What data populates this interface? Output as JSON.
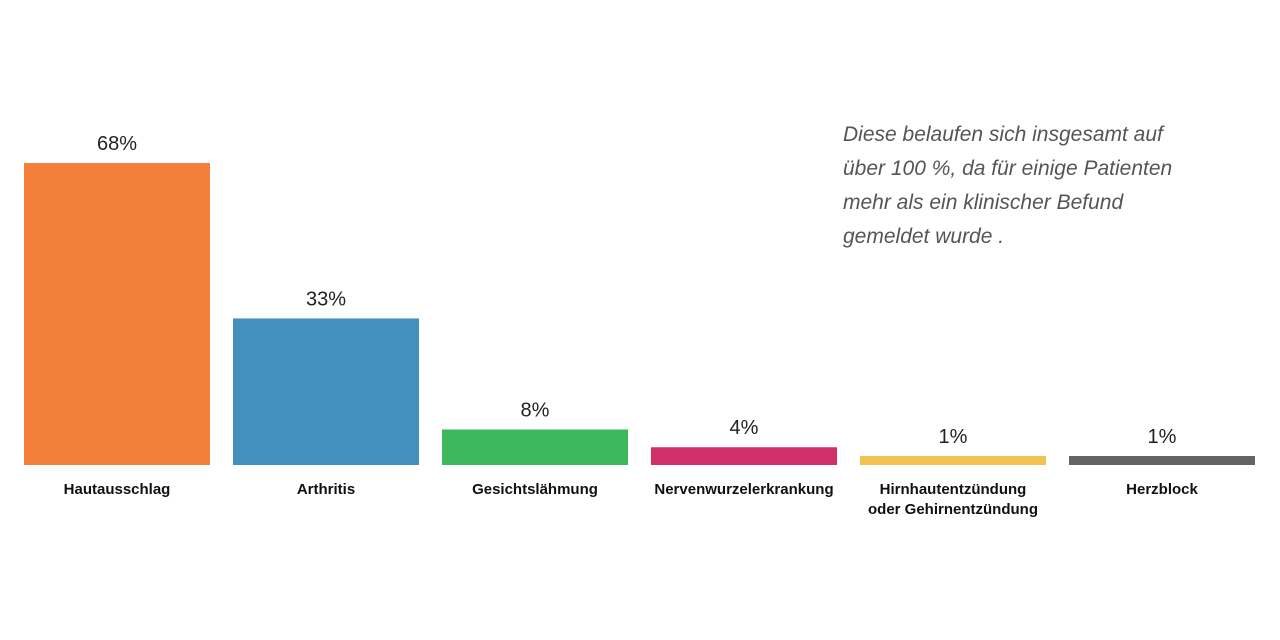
{
  "chart_data": {
    "type": "bar",
    "title": "",
    "xlabel": "",
    "ylabel": "",
    "ylim": [
      0,
      68
    ],
    "grid": false,
    "categories": [
      [
        "Hautausschlag"
      ],
      [
        "Arthritis"
      ],
      [
        "Gesichtslähmung"
      ],
      [
        "Nervenwurzelerkrankung"
      ],
      [
        "Hirnhautentzündung",
        "oder Gehirnentzündung"
      ],
      [
        "Herzblock"
      ]
    ],
    "values": [
      68,
      33,
      8,
      4,
      1,
      1
    ],
    "value_labels": [
      "68%",
      "33%",
      "8%",
      "4%",
      "1%",
      "1%"
    ],
    "colors": [
      "#F47F3B",
      "#4390BC",
      "#3DB85C",
      "#D12F68",
      "#F2C14E",
      "#626466"
    ],
    "annotation": [
      "Diese belaufen sich insgesamt auf",
      "über 100 %, da für einige Patienten",
      "mehr als ein klinischer Befund",
      "gemeldet wurde ."
    ]
  }
}
